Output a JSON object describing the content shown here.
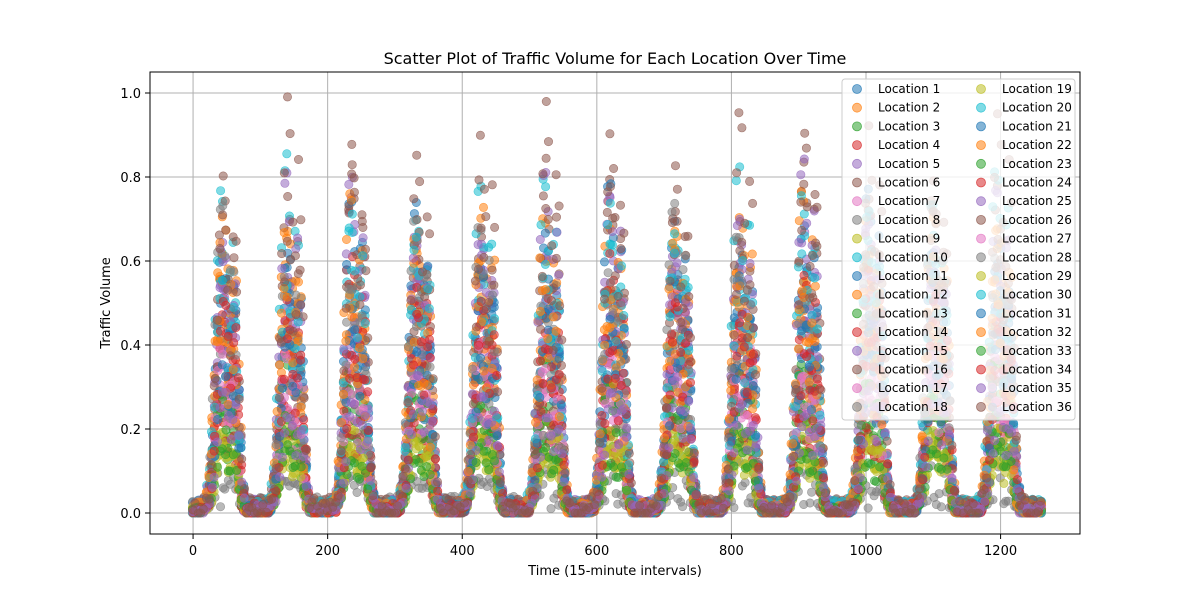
{
  "chart_data": {
    "type": "scatter",
    "title": "Scatter Plot of Traffic Volume for Each Location Over Time",
    "xlabel": "Time (15-minute intervals)",
    "ylabel": "Traffic Volume",
    "xlim": [
      -64,
      1318
    ],
    "ylim": [
      -0.05,
      1.05
    ],
    "xticks": [
      0,
      200,
      400,
      600,
      800,
      1000,
      1200
    ],
    "xtick_labels": [
      "0",
      "200",
      "400",
      "600",
      "800",
      "1000",
      "1200"
    ],
    "yticks": [
      0.0,
      0.2,
      0.4,
      0.6,
      0.8,
      1.0
    ],
    "ytick_labels": [
      "0.0",
      "0.2",
      "0.4",
      "0.6",
      "0.8",
      "1.0"
    ],
    "grid": true,
    "legend_position": "upper-right",
    "legend_columns": 2,
    "x_range": [
      0,
      1260
    ],
    "period": 96,
    "series": [
      {
        "name": "Location 1",
        "color": "#1f77b4",
        "peak": 0.6
      },
      {
        "name": "Location 2",
        "color": "#ff7f0e",
        "peak": 0.69
      },
      {
        "name": "Location 3",
        "color": "#2ca02c",
        "peak": 0.22
      },
      {
        "name": "Location 4",
        "color": "#d62728",
        "peak": 0.55
      },
      {
        "name": "Location 5",
        "color": "#9467bd",
        "peak": 0.7
      },
      {
        "name": "Location 6",
        "color": "#8c564b",
        "peak": 0.8
      },
      {
        "name": "Location 7",
        "color": "#e377c2",
        "peak": 0.45
      },
      {
        "name": "Location 8",
        "color": "#7f7f7f",
        "peak": 0.05
      },
      {
        "name": "Location 9",
        "color": "#bcbd22",
        "peak": 0.18
      },
      {
        "name": "Location 10",
        "color": "#17becf",
        "peak": 0.65
      },
      {
        "name": "Location 11",
        "color": "#1f77b4",
        "peak": 0.75
      },
      {
        "name": "Location 12",
        "color": "#ff7f0e",
        "peak": 0.72
      },
      {
        "name": "Location 13",
        "color": "#2ca02c",
        "peak": 0.35
      },
      {
        "name": "Location 14",
        "color": "#d62728",
        "peak": 0.25
      },
      {
        "name": "Location 15",
        "color": "#9467bd",
        "peak": 0.6
      },
      {
        "name": "Location 16",
        "color": "#8c564b",
        "peak": 0.4
      },
      {
        "name": "Location 17",
        "color": "#e377c2",
        "peak": 0.35
      },
      {
        "name": "Location 18",
        "color": "#7f7f7f",
        "peak": 0.5
      },
      {
        "name": "Location 19",
        "color": "#bcbd22",
        "peak": 0.2
      },
      {
        "name": "Location 20",
        "color": "#17becf",
        "peak": 0.8
      },
      {
        "name": "Location 21",
        "color": "#1f77b4",
        "peak": 0.55
      },
      {
        "name": "Location 22",
        "color": "#ff7f0e",
        "peak": 0.62
      },
      {
        "name": "Location 23",
        "color": "#2ca02c",
        "peak": 0.3
      },
      {
        "name": "Location 24",
        "color": "#d62728",
        "peak": 0.58
      },
      {
        "name": "Location 25",
        "color": "#9467bd",
        "peak": 0.8
      },
      {
        "name": "Location 26",
        "color": "#8c564b",
        "peak": 0.92
      },
      {
        "name": "Location 27",
        "color": "#e377c2",
        "peak": 0.38
      },
      {
        "name": "Location 28",
        "color": "#7f7f7f",
        "peak": 0.7
      },
      {
        "name": "Location 29",
        "color": "#bcbd22",
        "peak": 0.16
      },
      {
        "name": "Location 30",
        "color": "#17becf",
        "peak": 0.68
      },
      {
        "name": "Location 31",
        "color": "#1f77b4",
        "peak": 0.45
      },
      {
        "name": "Location 32",
        "color": "#ff7f0e",
        "peak": 0.52
      },
      {
        "name": "Location 33",
        "color": "#2ca02c",
        "peak": 0.15
      },
      {
        "name": "Location 34",
        "color": "#d62728",
        "peak": 0.48
      },
      {
        "name": "Location 35",
        "color": "#9467bd",
        "peak": 0.3
      },
      {
        "name": "Location 36",
        "color": "#8c564b",
        "peak": 0.85
      }
    ]
  }
}
